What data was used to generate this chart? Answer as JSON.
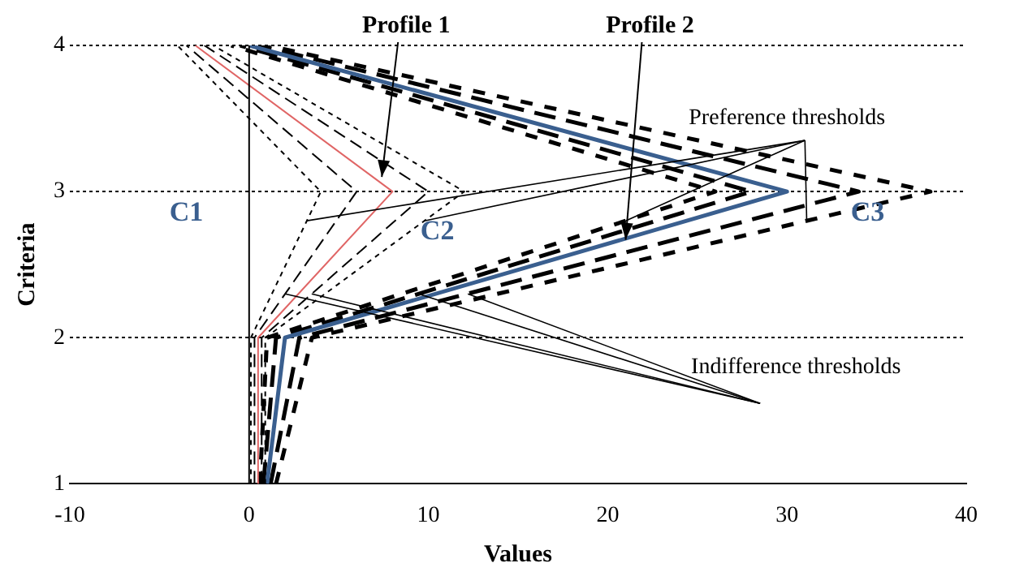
{
  "chart_data": {
    "type": "line",
    "xlabel": "Values",
    "ylabel": "Criteria",
    "xlim": [
      -10,
      40
    ],
    "xticks": [
      -10,
      0,
      10,
      20,
      30,
      40
    ],
    "ylim": [
      1,
      4
    ],
    "yticks": [
      1,
      2,
      3,
      4
    ],
    "grid": "y",
    "legend": false,
    "ref_lines": [
      {
        "axis": "x",
        "value": 0,
        "color": "#000000",
        "line_style": "solid"
      }
    ],
    "series": [
      {
        "color": "#e06666",
        "x": [
          0.5,
          0.5,
          8,
          -3
        ],
        "values": [
          1,
          2,
          3,
          4
        ],
        "line_style": "solid"
      },
      {
        "color": "#000000",
        "x": [
          0.3,
          0.3,
          6,
          -3.5
        ],
        "values": [
          1,
          2,
          3,
          4
        ],
        "line_style": "dashed"
      },
      {
        "color": "#000000",
        "x": [
          0.7,
          0.7,
          10,
          -2.5
        ],
        "values": [
          1,
          2,
          3,
          4
        ],
        "line_style": "dashed"
      },
      {
        "color": "#000000",
        "x": [
          0.1,
          0.1,
          4,
          -4
        ],
        "values": [
          1,
          2,
          3,
          4
        ],
        "line_style": "dotted"
      },
      {
        "color": "#000000",
        "x": [
          0.9,
          0.9,
          12,
          -2
        ],
        "values": [
          1,
          2,
          3,
          4
        ],
        "line_style": "dotted"
      },
      {
        "color": "#3a5f8f",
        "x": [
          1,
          2,
          30,
          0
        ],
        "values": [
          1,
          2,
          3,
          4
        ],
        "line_style": "solid"
      },
      {
        "color": "#000000",
        "x": [
          0.8,
          1.5,
          28,
          -0.5
        ],
        "values": [
          1,
          2,
          3,
          4
        ],
        "line_style": "dashed"
      },
      {
        "color": "#000000",
        "x": [
          1.2,
          2.8,
          34,
          0.5
        ],
        "values": [
          1,
          2,
          3,
          4
        ],
        "line_style": "dashed"
      },
      {
        "color": "#000000",
        "x": [
          0.6,
          1,
          26,
          -1
        ],
        "values": [
          1,
          2,
          3,
          4
        ],
        "line_style": "dotted"
      },
      {
        "color": "#000000",
        "x": [
          1.5,
          3.5,
          38,
          1
        ],
        "values": [
          1,
          2,
          3,
          4
        ],
        "line_style": "dotted"
      }
    ],
    "annotations": [
      {
        "text": "Profile 1",
        "x": 7.4,
        "y": 3.1
      },
      {
        "text": "Profile 2",
        "x": 21,
        "y": 2.67
      },
      "C1",
      "C2",
      "C3",
      {
        "text": "Preference thresholds",
        "x": 31.1,
        "y": 2.8
      },
      {
        "text": "Indifference thresholds",
        "x": 12.2,
        "y": 2.3
      }
    ]
  }
}
